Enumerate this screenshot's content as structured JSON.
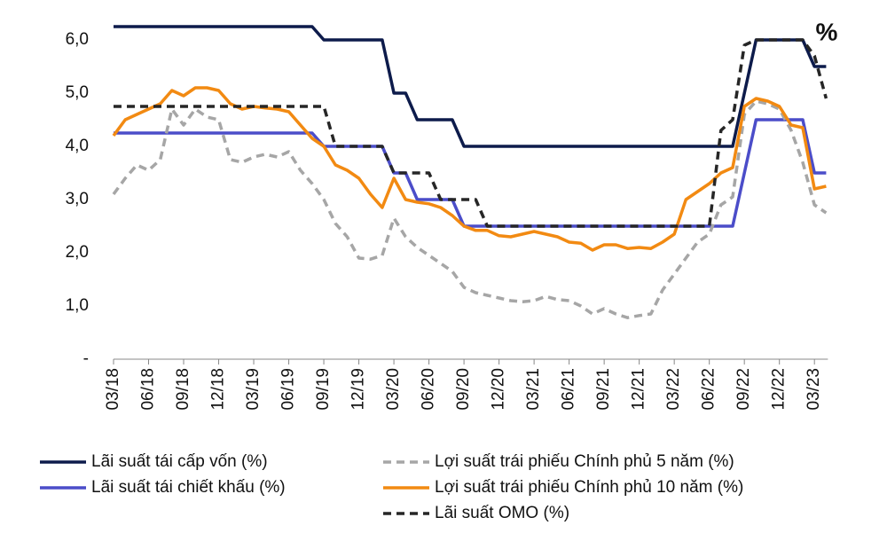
{
  "chart_data": {
    "type": "line",
    "annotation": "%",
    "categories": [
      "03/18",
      null,
      null,
      "06/18",
      null,
      null,
      "09/18",
      null,
      null,
      "12/18",
      null,
      null,
      "03/19",
      null,
      null,
      "06/19",
      null,
      null,
      "09/19",
      null,
      null,
      "12/19",
      null,
      null,
      "03/20",
      null,
      null,
      "06/20",
      null,
      null,
      "09/20",
      null,
      null,
      "12/20",
      null,
      null,
      "03/21",
      null,
      null,
      "06/21",
      null,
      null,
      "09/21",
      null,
      null,
      "12/21",
      null,
      null,
      "03/22",
      null,
      null,
      "06/22",
      null,
      null,
      "09/22",
      null,
      null,
      "12/22",
      null,
      null,
      "03/23",
      null
    ],
    "ylim": [
      0,
      6.5
    ],
    "yticks": [
      {
        "value": 0,
        "label": "-"
      },
      {
        "value": 1,
        "label": "1,0"
      },
      {
        "value": 2,
        "label": "2,0"
      },
      {
        "value": 3,
        "label": "3,0"
      },
      {
        "value": 4,
        "label": "4,0"
      },
      {
        "value": 5,
        "label": "5,0"
      },
      {
        "value": 6,
        "label": "6,0"
      }
    ],
    "grid": false,
    "series": [
      {
        "name": "Lãi suất tái cấp vốn (%)",
        "color": "#0d1b4b",
        "style": "solid",
        "values": [
          6.25,
          6.25,
          6.25,
          6.25,
          6.25,
          6.25,
          6.25,
          6.25,
          6.25,
          6.25,
          6.25,
          6.25,
          6.25,
          6.25,
          6.25,
          6.25,
          6.25,
          6.25,
          6.0,
          6.0,
          6.0,
          6.0,
          6.0,
          6.0,
          5.0,
          5.0,
          4.5,
          4.5,
          4.5,
          4.5,
          4.0,
          4.0,
          4.0,
          4.0,
          4.0,
          4.0,
          4.0,
          4.0,
          4.0,
          4.0,
          4.0,
          4.0,
          4.0,
          4.0,
          4.0,
          4.0,
          4.0,
          4.0,
          4.0,
          4.0,
          4.0,
          4.0,
          4.0,
          4.0,
          5.0,
          6.0,
          6.0,
          6.0,
          6.0,
          6.0,
          5.5,
          5.5
        ]
      },
      {
        "name": "Lãi suất tái chiết khấu (%)",
        "color": "#4b4dc9",
        "style": "solid",
        "values": [
          4.25,
          4.25,
          4.25,
          4.25,
          4.25,
          4.25,
          4.25,
          4.25,
          4.25,
          4.25,
          4.25,
          4.25,
          4.25,
          4.25,
          4.25,
          4.25,
          4.25,
          4.25,
          4.0,
          4.0,
          4.0,
          4.0,
          4.0,
          4.0,
          3.5,
          3.5,
          3.0,
          3.0,
          3.0,
          3.0,
          2.5,
          2.5,
          2.5,
          2.5,
          2.5,
          2.5,
          2.5,
          2.5,
          2.5,
          2.5,
          2.5,
          2.5,
          2.5,
          2.5,
          2.5,
          2.5,
          2.5,
          2.5,
          2.5,
          2.5,
          2.5,
          2.5,
          2.5,
          2.5,
          3.5,
          4.5,
          4.5,
          4.5,
          4.5,
          4.5,
          3.5,
          3.5
        ]
      },
      {
        "name": "Lợi suất trái phiếu Chính phủ 5 năm (%)",
        "color": "#a6a6a6",
        "style": "dashed",
        "values": [
          3.1,
          3.4,
          3.65,
          3.55,
          3.75,
          4.7,
          4.4,
          4.7,
          4.55,
          4.5,
          3.75,
          3.7,
          3.8,
          3.85,
          3.8,
          3.9,
          3.55,
          3.3,
          3.0,
          2.55,
          2.3,
          1.9,
          1.88,
          1.95,
          2.65,
          2.3,
          2.1,
          1.95,
          1.8,
          1.65,
          1.35,
          1.25,
          1.2,
          1.15,
          1.1,
          1.08,
          1.1,
          1.18,
          1.12,
          1.1,
          1.0,
          0.85,
          0.95,
          0.85,
          0.78,
          0.82,
          0.85,
          1.3,
          1.6,
          1.9,
          2.2,
          2.35,
          2.9,
          3.05,
          4.6,
          4.85,
          4.8,
          4.7,
          4.3,
          3.7,
          2.9,
          2.75
        ]
      },
      {
        "name": "Lợi suất trái phiếu Chính phủ 10 năm (%)",
        "color": "#f28a12",
        "style": "solid",
        "values": [
          4.2,
          4.5,
          4.6,
          4.7,
          4.8,
          5.05,
          4.95,
          5.1,
          5.1,
          5.05,
          4.8,
          4.7,
          4.75,
          4.72,
          4.7,
          4.65,
          4.4,
          4.15,
          4.0,
          3.65,
          3.55,
          3.4,
          3.1,
          2.85,
          3.4,
          3.0,
          2.95,
          2.92,
          2.85,
          2.7,
          2.5,
          2.42,
          2.42,
          2.32,
          2.3,
          2.35,
          2.4,
          2.35,
          2.3,
          2.2,
          2.18,
          2.05,
          2.15,
          2.15,
          2.08,
          2.1,
          2.08,
          2.2,
          2.35,
          3.0,
          3.15,
          3.3,
          3.5,
          3.6,
          4.75,
          4.9,
          4.85,
          4.75,
          4.4,
          4.35,
          3.2,
          3.25
        ]
      },
      {
        "name": "Lãi suất OMO (%)",
        "color": "#262626",
        "style": "dashed",
        "values": [
          4.75,
          4.75,
          4.75,
          4.75,
          4.75,
          4.75,
          4.75,
          4.75,
          4.75,
          4.75,
          4.75,
          4.75,
          4.75,
          4.75,
          4.75,
          4.75,
          4.75,
          4.75,
          4.75,
          4.0,
          4.0,
          4.0,
          4.0,
          4.0,
          3.5,
          3.5,
          3.5,
          3.5,
          3.0,
          3.0,
          3.0,
          3.0,
          2.5,
          2.5,
          2.5,
          2.5,
          2.5,
          2.5,
          2.5,
          2.5,
          2.5,
          2.5,
          2.5,
          2.5,
          2.5,
          2.5,
          2.5,
          2.5,
          2.5,
          2.5,
          2.5,
          2.5,
          4.3,
          4.5,
          5.9,
          6.0,
          6.0,
          6.0,
          6.0,
          6.0,
          5.7,
          4.9
        ]
      }
    ]
  }
}
